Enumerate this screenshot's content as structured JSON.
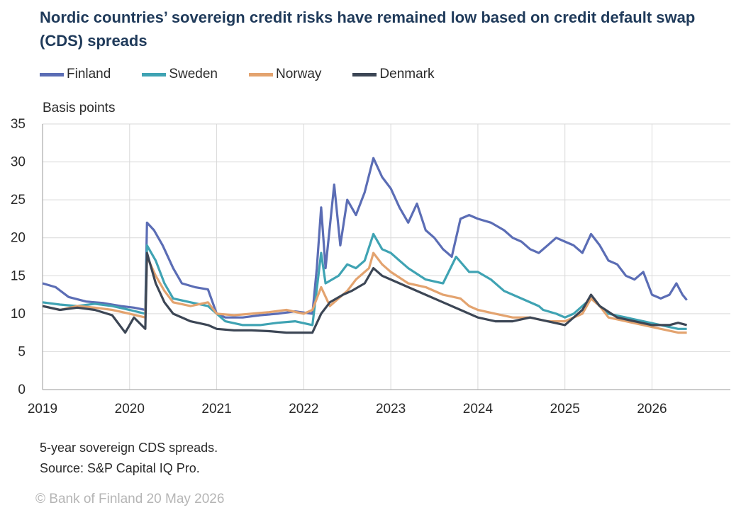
{
  "title": "Nordic countries’ sovereign credit risks have remained low based on credit default swap (CDS) spreads",
  "notes": [
    "5-year sovereign CDS spreads.",
    "Source: S&P Capital IQ Pro."
  ],
  "copyright": "© Bank of Finland 20 May 2026",
  "chart_data": {
    "type": "line",
    "ylabel": "Basis points",
    "ylim": [
      0,
      35
    ],
    "yticks": [
      0,
      5,
      10,
      15,
      20,
      25,
      30,
      35
    ],
    "xlim": [
      2019.0,
      2026.9
    ],
    "xticks": [
      2019,
      2020,
      2021,
      2022,
      2023,
      2024,
      2025,
      2026
    ],
    "grid": true,
    "legend_position": "top",
    "series": [
      {
        "name": "Finland",
        "color": "#5b6db5",
        "points": [
          [
            2019.0,
            14.0
          ],
          [
            2019.15,
            13.5
          ],
          [
            2019.3,
            12.2
          ],
          [
            2019.5,
            11.6
          ],
          [
            2019.7,
            11.4
          ],
          [
            2019.9,
            11.0
          ],
          [
            2020.05,
            10.8
          ],
          [
            2020.18,
            10.5
          ],
          [
            2020.2,
            22.0
          ],
          [
            2020.28,
            21.0
          ],
          [
            2020.38,
            19.0
          ],
          [
            2020.5,
            16.0
          ],
          [
            2020.6,
            14.0
          ],
          [
            2020.75,
            13.5
          ],
          [
            2020.9,
            13.2
          ],
          [
            2021.0,
            10.0
          ],
          [
            2021.1,
            9.5
          ],
          [
            2021.3,
            9.5
          ],
          [
            2021.5,
            9.8
          ],
          [
            2021.7,
            10.0
          ],
          [
            2021.9,
            10.3
          ],
          [
            2022.1,
            10.0
          ],
          [
            2022.15,
            16.0
          ],
          [
            2022.2,
            24.0
          ],
          [
            2022.25,
            16.0
          ],
          [
            2022.35,
            27.0
          ],
          [
            2022.42,
            19.0
          ],
          [
            2022.5,
            25.0
          ],
          [
            2022.6,
            23.0
          ],
          [
            2022.7,
            26.0
          ],
          [
            2022.8,
            30.5
          ],
          [
            2022.9,
            28.0
          ],
          [
            2023.0,
            26.5
          ],
          [
            2023.1,
            24.0
          ],
          [
            2023.2,
            22.0
          ],
          [
            2023.3,
            24.5
          ],
          [
            2023.4,
            21.0
          ],
          [
            2023.5,
            20.0
          ],
          [
            2023.6,
            18.5
          ],
          [
            2023.7,
            17.5
          ],
          [
            2023.8,
            22.5
          ],
          [
            2023.9,
            23.0
          ],
          [
            2024.0,
            22.5
          ],
          [
            2024.15,
            22.0
          ],
          [
            2024.3,
            21.0
          ],
          [
            2024.4,
            20.0
          ],
          [
            2024.5,
            19.5
          ],
          [
            2024.6,
            18.5
          ],
          [
            2024.7,
            18.0
          ],
          [
            2024.8,
            19.0
          ],
          [
            2024.9,
            20.0
          ],
          [
            2025.0,
            19.5
          ],
          [
            2025.1,
            19.0
          ],
          [
            2025.2,
            18.0
          ],
          [
            2025.3,
            20.5
          ],
          [
            2025.4,
            19.0
          ],
          [
            2025.5,
            17.0
          ],
          [
            2025.6,
            16.5
          ],
          [
            2025.7,
            15.0
          ],
          [
            2025.8,
            14.5
          ],
          [
            2025.9,
            15.5
          ],
          [
            2026.0,
            12.5
          ],
          [
            2026.1,
            12.0
          ],
          [
            2026.2,
            12.5
          ],
          [
            2026.28,
            14.0
          ],
          [
            2026.35,
            12.5
          ],
          [
            2026.4,
            11.8
          ]
        ]
      },
      {
        "name": "Sweden",
        "color": "#3fa3b3",
        "points": [
          [
            2019.0,
            11.5
          ],
          [
            2019.2,
            11.2
          ],
          [
            2019.4,
            11.0
          ],
          [
            2019.6,
            11.3
          ],
          [
            2019.8,
            11.0
          ],
          [
            2020.0,
            10.5
          ],
          [
            2020.18,
            10.0
          ],
          [
            2020.2,
            19.0
          ],
          [
            2020.3,
            17.0
          ],
          [
            2020.4,
            14.0
          ],
          [
            2020.5,
            12.0
          ],
          [
            2020.7,
            11.5
          ],
          [
            2020.9,
            11.0
          ],
          [
            2021.0,
            10.0
          ],
          [
            2021.1,
            9.0
          ],
          [
            2021.3,
            8.5
          ],
          [
            2021.5,
            8.5
          ],
          [
            2021.7,
            8.8
          ],
          [
            2021.9,
            9.0
          ],
          [
            2022.1,
            8.5
          ],
          [
            2022.2,
            18.0
          ],
          [
            2022.25,
            14.0
          ],
          [
            2022.4,
            15.0
          ],
          [
            2022.5,
            16.5
          ],
          [
            2022.6,
            16.0
          ],
          [
            2022.7,
            17.0
          ],
          [
            2022.8,
            20.5
          ],
          [
            2022.9,
            18.5
          ],
          [
            2023.0,
            18.0
          ],
          [
            2023.1,
            17.0
          ],
          [
            2023.2,
            16.0
          ],
          [
            2023.4,
            14.5
          ],
          [
            2023.6,
            14.0
          ],
          [
            2023.75,
            17.5
          ],
          [
            2023.9,
            15.5
          ],
          [
            2024.0,
            15.5
          ],
          [
            2024.15,
            14.5
          ],
          [
            2024.3,
            13.0
          ],
          [
            2024.5,
            12.0
          ],
          [
            2024.7,
            11.0
          ],
          [
            2024.75,
            10.5
          ],
          [
            2024.9,
            10.0
          ],
          [
            2025.0,
            9.5
          ],
          [
            2025.1,
            10.0
          ],
          [
            2025.2,
            11.0
          ],
          [
            2025.3,
            12.0
          ],
          [
            2025.4,
            11.0
          ],
          [
            2025.5,
            10.0
          ],
          [
            2025.7,
            9.5
          ],
          [
            2025.9,
            9.0
          ],
          [
            2026.1,
            8.5
          ],
          [
            2026.3,
            8.0
          ],
          [
            2026.4,
            8.0
          ]
        ]
      },
      {
        "name": "Norway",
        "color": "#e3a36f",
        "points": [
          [
            2019.0,
            11.0
          ],
          [
            2019.2,
            10.5
          ],
          [
            2019.4,
            11.0
          ],
          [
            2019.6,
            10.8
          ],
          [
            2019.8,
            10.5
          ],
          [
            2020.0,
            10.0
          ],
          [
            2020.18,
            9.5
          ],
          [
            2020.2,
            17.5
          ],
          [
            2020.3,
            15.0
          ],
          [
            2020.4,
            13.0
          ],
          [
            2020.5,
            11.5
          ],
          [
            2020.7,
            11.0
          ],
          [
            2020.9,
            11.5
          ],
          [
            2021.0,
            10.0
          ],
          [
            2021.2,
            9.8
          ],
          [
            2021.4,
            10.0
          ],
          [
            2021.6,
            10.2
          ],
          [
            2021.8,
            10.5
          ],
          [
            2022.0,
            10.0
          ],
          [
            2022.1,
            10.5
          ],
          [
            2022.2,
            13.5
          ],
          [
            2022.3,
            11.0
          ],
          [
            2022.5,
            13.0
          ],
          [
            2022.6,
            14.5
          ],
          [
            2022.75,
            16.0
          ],
          [
            2022.8,
            18.0
          ],
          [
            2022.9,
            16.5
          ],
          [
            2023.0,
            15.5
          ],
          [
            2023.2,
            14.0
          ],
          [
            2023.4,
            13.5
          ],
          [
            2023.6,
            12.5
          ],
          [
            2023.8,
            12.0
          ],
          [
            2023.9,
            11.0
          ],
          [
            2024.0,
            10.5
          ],
          [
            2024.2,
            10.0
          ],
          [
            2024.4,
            9.5
          ],
          [
            2024.6,
            9.5
          ],
          [
            2024.8,
            9.0
          ],
          [
            2025.0,
            9.0
          ],
          [
            2025.2,
            10.0
          ],
          [
            2025.3,
            12.0
          ],
          [
            2025.4,
            11.0
          ],
          [
            2025.5,
            9.5
          ],
          [
            2025.7,
            9.0
          ],
          [
            2025.9,
            8.5
          ],
          [
            2026.1,
            8.0
          ],
          [
            2026.3,
            7.5
          ],
          [
            2026.4,
            7.5
          ]
        ]
      },
      {
        "name": "Denmark",
        "color": "#3c4655",
        "points": [
          [
            2019.0,
            11.0
          ],
          [
            2019.2,
            10.5
          ],
          [
            2019.4,
            10.8
          ],
          [
            2019.6,
            10.5
          ],
          [
            2019.8,
            9.8
          ],
          [
            2019.95,
            7.5
          ],
          [
            2020.05,
            9.5
          ],
          [
            2020.18,
            8.0
          ],
          [
            2020.2,
            18.0
          ],
          [
            2020.3,
            14.0
          ],
          [
            2020.4,
            11.5
          ],
          [
            2020.5,
            10.0
          ],
          [
            2020.7,
            9.0
          ],
          [
            2020.9,
            8.5
          ],
          [
            2021.0,
            8.0
          ],
          [
            2021.2,
            7.8
          ],
          [
            2021.4,
            7.8
          ],
          [
            2021.6,
            7.7
          ],
          [
            2021.8,
            7.5
          ],
          [
            2022.0,
            7.5
          ],
          [
            2022.1,
            7.5
          ],
          [
            2022.2,
            10.0
          ],
          [
            2022.3,
            11.5
          ],
          [
            2022.45,
            12.5
          ],
          [
            2022.55,
            13.0
          ],
          [
            2022.7,
            14.0
          ],
          [
            2022.8,
            16.0
          ],
          [
            2022.9,
            15.0
          ],
          [
            2023.0,
            14.5
          ],
          [
            2023.2,
            13.5
          ],
          [
            2023.4,
            12.5
          ],
          [
            2023.6,
            11.5
          ],
          [
            2023.8,
            10.5
          ],
          [
            2024.0,
            9.5
          ],
          [
            2024.2,
            9.0
          ],
          [
            2024.4,
            9.0
          ],
          [
            2024.6,
            9.5
          ],
          [
            2024.8,
            9.0
          ],
          [
            2025.0,
            8.5
          ],
          [
            2025.1,
            9.5
          ],
          [
            2025.2,
            10.5
          ],
          [
            2025.3,
            12.5
          ],
          [
            2025.4,
            11.0
          ],
          [
            2025.6,
            9.5
          ],
          [
            2025.8,
            9.0
          ],
          [
            2026.0,
            8.5
          ],
          [
            2026.2,
            8.5
          ],
          [
            2026.3,
            8.8
          ],
          [
            2026.4,
            8.5
          ]
        ]
      }
    ]
  }
}
